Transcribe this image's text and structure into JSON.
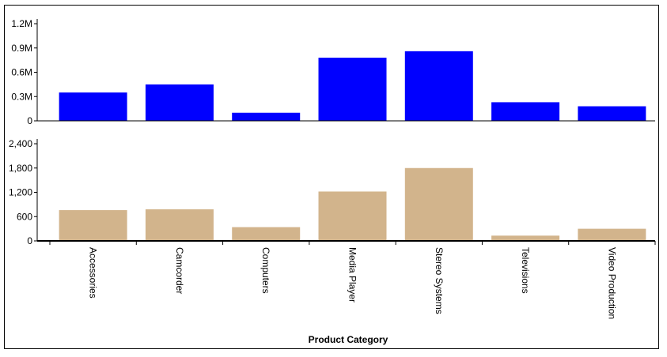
{
  "chart_data": {
    "type": "bar",
    "layout": "stacked-panels",
    "categories": [
      "Accessories",
      "Camcorder",
      "Computers",
      "Media Player",
      "Stereo Systems",
      "Televisions",
      "Video Production"
    ],
    "xlabel": "Product Category",
    "panels": [
      {
        "name": "",
        "color": "#0000FF",
        "ylim": [
          0,
          1200000
        ],
        "ticks": [
          0,
          300000,
          600000,
          900000,
          1200000
        ],
        "tick_labels": [
          "0",
          "0.3M",
          "0.6M",
          "0.9M",
          "1.2M"
        ],
        "values": [
          350000,
          450000,
          100000,
          780000,
          860000,
          230000,
          180000
        ]
      },
      {
        "name": "",
        "color": "#D2B48C",
        "ylim": [
          0,
          2400
        ],
        "ticks": [
          0,
          600,
          1200,
          1800,
          2400
        ],
        "tick_labels": [
          "0",
          "600",
          "1,200",
          "1,800",
          "2,400"
        ],
        "values": [
          760,
          780,
          340,
          1220,
          1800,
          130,
          300
        ]
      }
    ],
    "grid": false,
    "legend": "none"
  }
}
